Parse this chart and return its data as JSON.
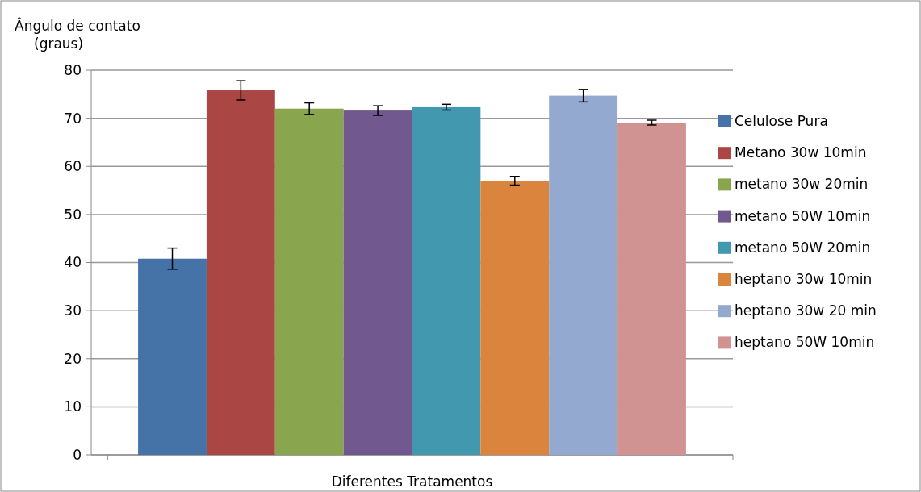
{
  "chart_data": {
    "type": "bar",
    "ylabel": "Ângulo de contato (graus)",
    "xlabel": "Diferentes Tratamentos",
    "categories": [
      null
    ],
    "series": [
      {
        "name": "Celulose Pura",
        "color": "#4572a7",
        "values": [
          40.8
        ],
        "errors": [
          2.2
        ]
      },
      {
        "name": "Metano 30w 10min",
        "color": "#aa4643",
        "values": [
          75.8
        ],
        "errors": [
          2.0
        ]
      },
      {
        "name": "metano 30w 20min",
        "color": "#89a54e",
        "values": [
          72.0
        ],
        "errors": [
          1.2
        ]
      },
      {
        "name": "metano 50W 10min",
        "color": "#71588f",
        "values": [
          71.6
        ],
        "errors": [
          1.0
        ]
      },
      {
        "name": "metano 50W 20min",
        "color": "#4198af",
        "values": [
          72.3
        ],
        "errors": [
          0.6
        ]
      },
      {
        "name": "heptano 30w 10min",
        "color": "#db843d",
        "values": [
          57.0
        ],
        "errors": [
          0.9
        ]
      },
      {
        "name": "heptano 30w 20 min",
        "color": "#93a9cf",
        "values": [
          74.7
        ],
        "errors": [
          1.3
        ]
      },
      {
        "name": "heptano 50W 10min",
        "color": "#d19392",
        "values": [
          69.1
        ],
        "errors": [
          0.5
        ]
      }
    ],
    "ylim": [
      0,
      80
    ],
    "yticks": [
      0,
      10,
      20,
      30,
      40,
      50,
      60,
      70,
      80
    ],
    "grid": "y",
    "legend": "right"
  }
}
